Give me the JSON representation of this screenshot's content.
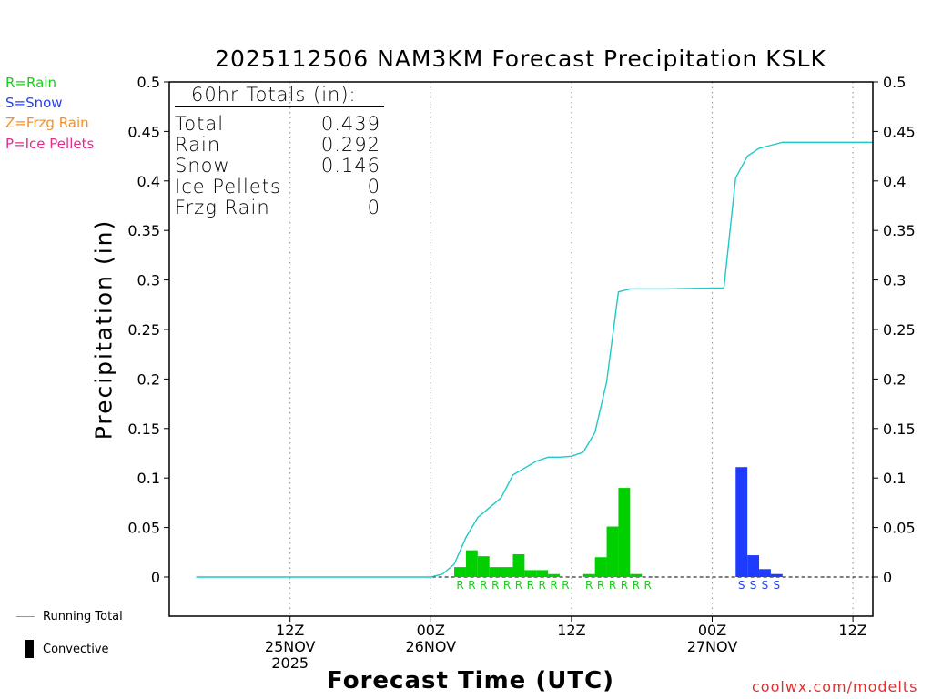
{
  "chart_data": {
    "type": "bar",
    "title": "2025112506 NAM3KM Forecast Precipitation KSLK",
    "ylabel": "Precipitation (in)",
    "xlabel": "Forecast Time (UTC)",
    "ylim": [
      -0.04,
      0.5
    ],
    "xlim_hours": [
      -4.3,
      55.7
    ],
    "yticks": [
      {
        "v": 0.5,
        "label": "0.5"
      },
      {
        "v": 0.45,
        "label": "0.45"
      },
      {
        "v": 0.4,
        "label": "0.4"
      },
      {
        "v": 0.35,
        "label": "0.35"
      },
      {
        "v": 0.3,
        "label": "0.3"
      },
      {
        "v": 0.25,
        "label": "0.25"
      },
      {
        "v": 0.2,
        "label": "0.2"
      },
      {
        "v": 0.15,
        "label": "0.15"
      },
      {
        "v": 0.1,
        "label": "0.1"
      },
      {
        "v": 0.05,
        "label": "0.05"
      },
      {
        "v": 0,
        "label": "0"
      }
    ],
    "xticks": [
      {
        "h": 6,
        "lines": [
          "12Z",
          "25NOV",
          "2025"
        ]
      },
      {
        "h": 18,
        "lines": [
          "00Z",
          "26NOV"
        ]
      },
      {
        "h": 30,
        "lines": [
          "12Z"
        ]
      },
      {
        "h": 42,
        "lines": [
          "00Z",
          "27NOV"
        ]
      },
      {
        "h": 54,
        "lines": [
          "12Z"
        ]
      }
    ],
    "bars": [
      {
        "h": 20,
        "value": 0.01,
        "type": "rain"
      },
      {
        "h": 21,
        "value": 0.027,
        "type": "rain"
      },
      {
        "h": 22,
        "value": 0.021,
        "type": "rain"
      },
      {
        "h": 23,
        "value": 0.01,
        "type": "rain"
      },
      {
        "h": 24,
        "value": 0.01,
        "type": "rain"
      },
      {
        "h": 25,
        "value": 0.023,
        "type": "rain"
      },
      {
        "h": 26,
        "value": 0.007,
        "type": "rain"
      },
      {
        "h": 27,
        "value": 0.007,
        "type": "rain"
      },
      {
        "h": 28,
        "value": 0.003,
        "type": "rain"
      },
      {
        "h": 31,
        "value": 0.003,
        "type": "rain"
      },
      {
        "h": 32,
        "value": 0.02,
        "type": "rain"
      },
      {
        "h": 33,
        "value": 0.051,
        "type": "rain"
      },
      {
        "h": 34,
        "value": 0.09,
        "type": "rain"
      },
      {
        "h": 35,
        "value": 0.003,
        "type": "rain"
      },
      {
        "h": 44,
        "value": 0.111,
        "type": "snow"
      },
      {
        "h": 45,
        "value": 0.022,
        "type": "snow"
      },
      {
        "h": 46,
        "value": 0.008,
        "type": "snow"
      },
      {
        "h": 47,
        "value": 0.003,
        "type": "snow"
      }
    ],
    "running_total": {
      "x": [
        -2,
        18,
        19,
        20,
        21,
        22,
        23,
        24,
        25,
        26,
        27,
        28,
        29,
        30,
        31,
        32,
        33,
        34,
        35,
        36,
        37,
        38,
        43,
        44,
        45,
        46,
        47,
        48,
        55.7
      ],
      "y": [
        0,
        0,
        0.003,
        0.013,
        0.04,
        0.06,
        0.07,
        0.08,
        0.103,
        0.11,
        0.117,
        0.121,
        0.121,
        0.122,
        0.126,
        0.146,
        0.197,
        0.288,
        0.291,
        0.291,
        0.291,
        0.291,
        0.292,
        0.403,
        0.425,
        0.433,
        0.436,
        0.439,
        0.439
      ]
    },
    "type_markers": [
      {
        "text": "RRRRRRRRRR",
        "h_start": 20,
        "color": "#1ccb1c"
      },
      {
        "text": "RRRRRR",
        "h_start": 31,
        "color": "#1ccb1c"
      },
      {
        "text": "SSSS",
        "h_start": 44,
        "color": "#2540ee"
      }
    ],
    "gridlines_hours": [
      6,
      18,
      30,
      42,
      54
    ],
    "colors": {
      "rain": "#00d000",
      "snow": "#1e3cff",
      "total": "#20c8c8",
      "grid": "#9a9a9a"
    }
  },
  "totals_box": {
    "header": "60hr Totals (in):",
    "rows": [
      {
        "label": "Total",
        "value": "0.439"
      },
      {
        "label": "Rain",
        "value": "0.292"
      },
      {
        "label": "Snow",
        "value": "0.146"
      },
      {
        "label": "Ice Pellets",
        "value": "0"
      },
      {
        "label": "Frzg Rain",
        "value": "0"
      }
    ]
  },
  "type_legend": [
    {
      "text": "R=Rain",
      "color": "#1ccb1c"
    },
    {
      "text": "S=Snow",
      "color": "#2540ee"
    },
    {
      "text": "Z=Frzg Rain",
      "color": "#f09030"
    },
    {
      "text": "P=Ice Pellets",
      "color": "#e0308a"
    }
  ],
  "footer": {
    "running_total_label": "Running Total",
    "convective_label": "Convective",
    "credit": "coolwx.com/modelts"
  }
}
